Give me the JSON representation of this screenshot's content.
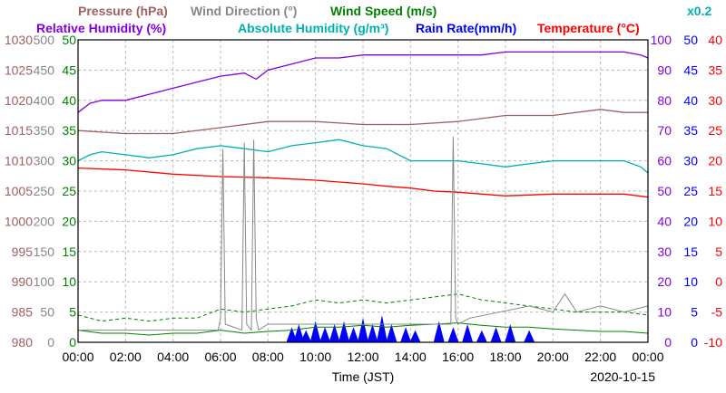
{
  "chart_data": {
    "type": "line",
    "date": "2020-10-15",
    "xlabel": "Time (JST)",
    "x_ticks": [
      "00:00",
      "02:00",
      "04:00",
      "06:00",
      "08:00",
      "10:00",
      "12:00",
      "14:00",
      "16:00",
      "18:00",
      "20:00",
      "22:00",
      "00:00"
    ],
    "scale_note": "x0.2",
    "colors": {
      "pressure": "#a06060",
      "wind_direction": "#888888",
      "wind_speed": "#008000",
      "relative_humidity": "#8000e0",
      "absolute_humidity": "#00b0b0",
      "rain_rate": "#0000ff",
      "temperature": "#ff0000"
    },
    "legend": {
      "pressure": "Pressure (hPa)",
      "wind_direction": "Wind Direction (°)",
      "wind_speed": "Wind Speed (m/s)",
      "relative_humidity": "Relative Humidity (%)",
      "absolute_humidity": "Absolute Humidity (g/m³)",
      "rain_rate": "Rain Rate(mm/h)",
      "temperature": "Temperature (°C)"
    },
    "axes": {
      "pressure": {
        "ticks": [
          "980",
          "985",
          "990",
          "995",
          "1000",
          "1005",
          "1010",
          "1015",
          "1020",
          "1025",
          "1030"
        ],
        "ylim": [
          980,
          1030
        ]
      },
      "wind_direction": {
        "ticks": [
          "0",
          "50",
          "100",
          "150",
          "200",
          "250",
          "300",
          "350",
          "400",
          "450",
          "500"
        ],
        "ylim": [
          0,
          500
        ]
      },
      "wind_speed": {
        "ticks": [
          "0",
          "5",
          "10",
          "15",
          "20",
          "25",
          "30",
          "35",
          "40",
          "45",
          "50"
        ],
        "ylim": [
          0,
          50
        ]
      },
      "relative_humidity": {
        "ticks": [
          "0",
          "10",
          "20",
          "30",
          "40",
          "50",
          "60",
          "70",
          "80",
          "90",
          "100"
        ],
        "ylim": [
          0,
          100
        ]
      },
      "rain_rate": {
        "ticks": [
          "0",
          "5",
          "10",
          "15",
          "20",
          "25",
          "30",
          "35",
          "40",
          "45",
          "50"
        ],
        "ylim": [
          0,
          50
        ]
      },
      "temperature": {
        "ticks": [
          "-10",
          "-5",
          "0",
          "5",
          "10",
          "15",
          "20",
          "25",
          "30",
          "35",
          "40"
        ],
        "ylim": [
          -10,
          40
        ]
      }
    },
    "series": [
      {
        "key": "relative_humidity",
        "axis": "relative_humidity",
        "x": [
          0,
          0.5,
          1,
          2,
          3,
          4,
          5,
          6,
          7,
          7.5,
          8,
          9,
          10,
          11,
          12,
          13,
          14,
          15,
          16,
          17,
          18,
          19,
          20,
          21,
          22,
          23,
          23.7,
          24
        ],
        "values": [
          76,
          79,
          80,
          80,
          82,
          84,
          86,
          88,
          89,
          87,
          90,
          92,
          94,
          94,
          95,
          95,
          95,
          95,
          95,
          95,
          96,
          96,
          96,
          96,
          96,
          96,
          95,
          94
        ]
      },
      {
        "key": "pressure",
        "axis": "pressure",
        "x": [
          0,
          2,
          4,
          6,
          8,
          10,
          12,
          14,
          16,
          18,
          20,
          22,
          23,
          24
        ],
        "values": [
          1015,
          1014.5,
          1014.5,
          1015.5,
          1016.5,
          1016.5,
          1016,
          1016,
          1016.5,
          1017.5,
          1017.5,
          1018.5,
          1018,
          1018
        ]
      },
      {
        "key": "absolute_humidity",
        "axis": "wind_speed",
        "x": [
          0,
          0.5,
          1,
          2,
          3,
          4,
          5,
          6,
          7,
          8,
          9,
          10,
          11,
          12,
          13,
          13.5,
          14,
          15,
          16,
          17,
          18,
          19,
          20,
          21,
          22,
          23,
          23.7,
          24
        ],
        "values": [
          30,
          31,
          31.5,
          31,
          30.5,
          31,
          32,
          32.5,
          32,
          31.5,
          32.5,
          33,
          33.5,
          32.5,
          32,
          31,
          30,
          30,
          30,
          29.5,
          29,
          29.5,
          30,
          30,
          30,
          30,
          29,
          28
        ]
      },
      {
        "key": "temperature",
        "axis": "temperature",
        "x": [
          0,
          2,
          4,
          6,
          8,
          10,
          12,
          13,
          14,
          15,
          16,
          18,
          20,
          22,
          23,
          24
        ],
        "values": [
          18.8,
          18.5,
          17.8,
          17.4,
          17.2,
          16.8,
          16.2,
          15.8,
          15.5,
          15,
          14.8,
          14.2,
          14.5,
          14.5,
          14.5,
          14
        ]
      },
      {
        "key": "wind_speed",
        "axis": "wind_speed",
        "x": [
          0,
          1,
          2,
          3,
          4,
          5,
          6,
          7,
          8,
          9,
          10,
          11,
          12,
          13,
          14,
          15,
          16,
          17,
          18,
          19,
          20,
          21,
          22,
          23,
          24
        ],
        "values": [
          2,
          1.5,
          1.5,
          1.2,
          1.5,
          1.5,
          2,
          1.5,
          1.8,
          2,
          2.5,
          2.5,
          2.8,
          2.5,
          2.8,
          3,
          3.2,
          2.8,
          2.5,
          2.5,
          2.2,
          2,
          1.8,
          1.8,
          1.5
        ]
      },
      {
        "key": "wind_speed_gust",
        "axis": "wind_speed",
        "x": [
          0,
          1,
          2,
          3,
          4,
          5,
          6,
          7,
          8,
          9,
          10,
          11,
          12,
          13,
          14,
          15,
          16,
          17,
          18,
          19,
          20,
          21,
          22,
          23,
          24
        ],
        "values": [
          4.5,
          3.5,
          4,
          3.5,
          4,
          4,
          5.5,
          5,
          5.5,
          6,
          7,
          6.5,
          7,
          6.5,
          7,
          7.5,
          8,
          7,
          6.5,
          6,
          5.5,
          5,
          5,
          5,
          4.5
        ]
      },
      {
        "key": "wind_direction",
        "axis": "wind_direction",
        "x": [
          0,
          5.9,
          6,
          6.1,
          6.2,
          6.9,
          7,
          7.1,
          7.3,
          7.4,
          7.5,
          7.6,
          8,
          12,
          15.7,
          15.8,
          15.9,
          16,
          16.5,
          19,
          20,
          20.5,
          21,
          22,
          23,
          24
        ],
        "values": [
          20,
          20,
          40,
          320,
          30,
          20,
          330,
          30,
          20,
          335,
          40,
          20,
          30,
          30,
          30,
          340,
          40,
          30,
          40,
          60,
          50,
          80,
          50,
          60,
          50,
          60
        ]
      },
      {
        "key": "rain_rate",
        "axis": "rain_rate",
        "x": [
          9,
          9.3,
          9.6,
          10,
          10.4,
          10.8,
          11.2,
          11.6,
          12,
          12.4,
          12.8,
          13.2,
          13.8,
          14.2,
          15.2,
          15.8,
          16.4,
          17,
          17.6,
          18.2,
          19
        ],
        "values": [
          2.5,
          3,
          2,
          3.5,
          2.5,
          3,
          3.5,
          2.5,
          4,
          3,
          4.5,
          3,
          2.5,
          2,
          3.5,
          2.5,
          3,
          2,
          2.5,
          3,
          2
        ]
      }
    ]
  }
}
